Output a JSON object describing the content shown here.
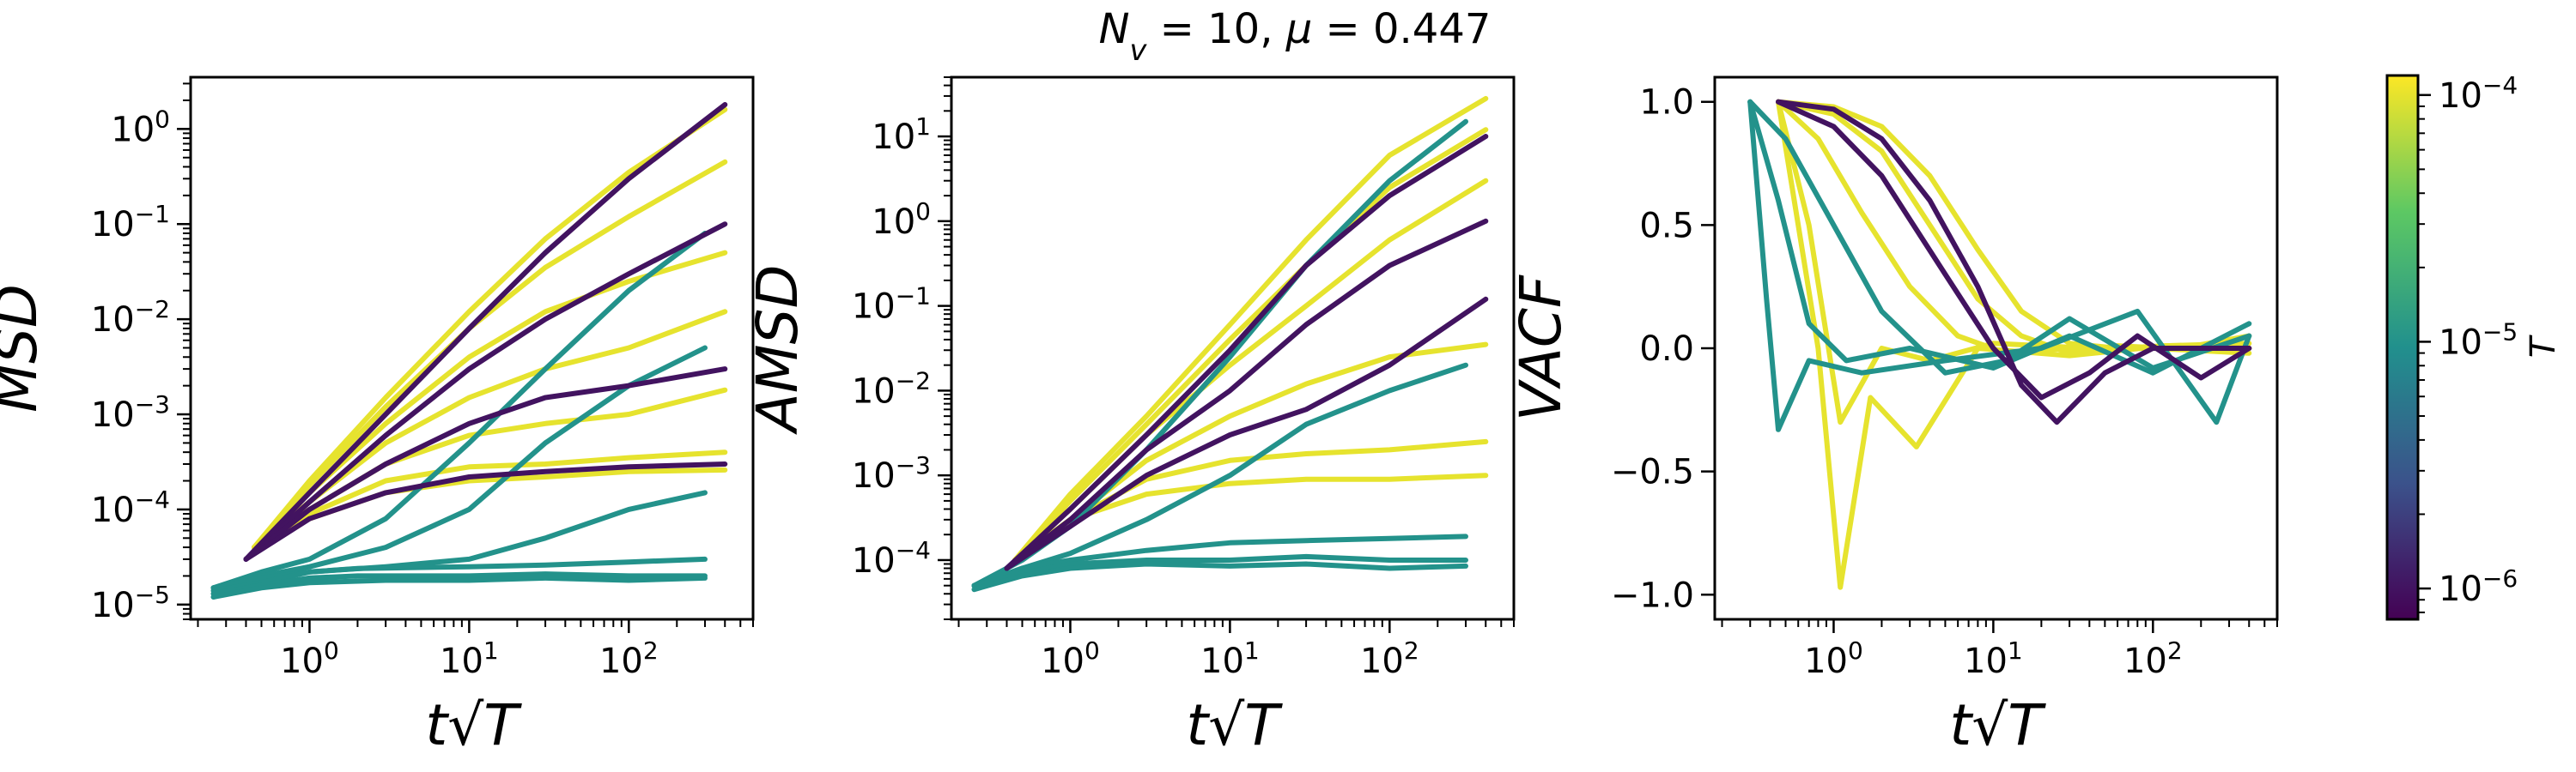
{
  "suptitle": "N_v = 10, μ = 0.447",
  "colormap": [
    "#440154",
    "#3b528b",
    "#21908d",
    "#5dc863",
    "#fde725"
  ],
  "chart_data": [
    {
      "type": "line",
      "ylabel": "MSD",
      "xlabel": "t√T",
      "xscale": "log",
      "yscale": "log",
      "xlim": [
        0.18,
        600
      ],
      "ylim": [
        7e-06,
        3.5
      ],
      "xticks": [
        1,
        10,
        100
      ],
      "xtick_labels": [
        "10^0",
        "10^1",
        "10^2"
      ],
      "yticks": [
        1e-05,
        0.0001,
        0.001,
        0.01,
        0.1,
        1
      ],
      "ytick_labels": [
        "10^-5",
        "10^-4",
        "10^-3",
        "10^-2",
        "10^-1",
        "10^0"
      ],
      "grid": false,
      "series": [
        {
          "T": 0.0001,
          "x": [
            0.45,
            1,
            3,
            10,
            30,
            100,
            400
          ],
          "y": [
            4e-05,
            0.0002,
            0.0015,
            0.012,
            0.07,
            0.35,
            1.6
          ]
        },
        {
          "T": 0.0001,
          "x": [
            0.45,
            1,
            3,
            10,
            30,
            100,
            400
          ],
          "y": [
            4e-05,
            0.00018,
            0.0012,
            0.008,
            0.035,
            0.12,
            0.45
          ]
        },
        {
          "T": 0.0001,
          "x": [
            0.45,
            1,
            3,
            10,
            30,
            100,
            400
          ],
          "y": [
            4e-05,
            0.00015,
            0.0008,
            0.004,
            0.012,
            0.025,
            0.05
          ]
        },
        {
          "T": 0.0001,
          "x": [
            0.45,
            1,
            3,
            10,
            30,
            100,
            400
          ],
          "y": [
            4e-05,
            0.00012,
            0.0005,
            0.0015,
            0.003,
            0.005,
            0.012
          ]
        },
        {
          "T": 0.0001,
          "x": [
            0.45,
            1,
            3,
            10,
            30,
            100,
            400
          ],
          "y": [
            4e-05,
            0.0001,
            0.0003,
            0.0006,
            0.0008,
            0.001,
            0.0018
          ]
        },
        {
          "T": 0.0001,
          "x": [
            0.45,
            1,
            3,
            10,
            30,
            100,
            400
          ],
          "y": [
            4e-05,
            9e-05,
            0.0002,
            0.00028,
            0.0003,
            0.00035,
            0.0004
          ]
        },
        {
          "T": 0.0001,
          "x": [
            0.45,
            1,
            3,
            10,
            30,
            100,
            400
          ],
          "y": [
            4e-05,
            8e-05,
            0.00015,
            0.0002,
            0.00022,
            0.00025,
            0.00026
          ]
        },
        {
          "T": 1e-05,
          "x": [
            0.25,
            0.5,
            1,
            3,
            10,
            30,
            100,
            300
          ],
          "y": [
            1.5e-05,
            2.2e-05,
            3e-05,
            8e-05,
            0.0005,
            0.003,
            0.02,
            0.08
          ]
        },
        {
          "T": 1e-05,
          "x": [
            0.25,
            0.5,
            1,
            3,
            10,
            30,
            100,
            300
          ],
          "y": [
            1.5e-05,
            2e-05,
            2.5e-05,
            4e-05,
            0.0001,
            0.0005,
            0.002,
            0.005
          ]
        },
        {
          "T": 1e-05,
          "x": [
            0.25,
            0.5,
            1,
            3,
            10,
            30,
            100,
            300
          ],
          "y": [
            1.5e-05,
            1.9e-05,
            2.2e-05,
            2.5e-05,
            3e-05,
            5e-05,
            0.0001,
            0.00015
          ]
        },
        {
          "T": 1e-05,
          "x": [
            0.25,
            0.5,
            1,
            2,
            10,
            30,
            100,
            300
          ],
          "y": [
            1.4e-05,
            1.7e-05,
            2.2e-05,
            2.4e-05,
            2.5e-05,
            2.6e-05,
            2.8e-05,
            3e-05
          ]
        },
        {
          "T": 1e-05,
          "x": [
            0.25,
            0.5,
            1,
            2,
            10,
            30,
            100,
            300
          ],
          "y": [
            1.3e-05,
            1.6e-05,
            1.9e-05,
            2e-05,
            2e-05,
            2.1e-05,
            2e-05,
            2e-05
          ]
        },
        {
          "T": 1e-05,
          "x": [
            0.25,
            0.5,
            1,
            3,
            10,
            30,
            100,
            300
          ],
          "y": [
            1.2e-05,
            1.5e-05,
            1.7e-05,
            1.8e-05,
            1.8e-05,
            1.9e-05,
            1.8e-05,
            1.9e-05
          ]
        },
        {
          "T": 1e-06,
          "x": [
            0.4,
            1,
            3,
            10,
            30,
            100,
            400
          ],
          "y": [
            3e-05,
            0.00015,
            0.001,
            0.008,
            0.05,
            0.3,
            1.8
          ]
        },
        {
          "T": 1e-06,
          "x": [
            0.4,
            1,
            3,
            10,
            30,
            100,
            400
          ],
          "y": [
            3e-05,
            0.00012,
            0.0006,
            0.003,
            0.01,
            0.03,
            0.1
          ]
        },
        {
          "T": 1e-06,
          "x": [
            0.4,
            1,
            3,
            10,
            30,
            100,
            400
          ],
          "y": [
            3e-05,
            0.0001,
            0.0003,
            0.0008,
            0.0015,
            0.002,
            0.003
          ]
        },
        {
          "T": 1e-06,
          "x": [
            0.4,
            1,
            3,
            10,
            30,
            100,
            400
          ],
          "y": [
            3e-05,
            8e-05,
            0.00015,
            0.00022,
            0.00025,
            0.00028,
            0.0003
          ]
        }
      ]
    },
    {
      "type": "line",
      "ylabel": "AMSD",
      "xlabel": "t√T",
      "xscale": "log",
      "yscale": "log",
      "xlim": [
        0.18,
        600
      ],
      "ylim": [
        2e-05,
        50
      ],
      "xticks": [
        1,
        10,
        100
      ],
      "xtick_labels": [
        "10^0",
        "10^1",
        "10^2"
      ],
      "yticks": [
        0.0001,
        0.001,
        0.01,
        0.1,
        1,
        10
      ],
      "ytick_labels": [
        "10^-4",
        "10^-3",
        "10^-2",
        "10^-1",
        "10^0",
        "10^1"
      ],
      "grid": false,
      "series": [
        {
          "T": 0.0001,
          "x": [
            0.45,
            1,
            3,
            10,
            30,
            100,
            400
          ],
          "y": [
            0.0001,
            0.0006,
            0.005,
            0.06,
            0.6,
            6,
            28
          ]
        },
        {
          "T": 0.0001,
          "x": [
            0.45,
            1,
            3,
            10,
            30,
            100,
            400
          ],
          "y": [
            0.0001,
            0.0005,
            0.004,
            0.04,
            0.3,
            2.5,
            12
          ]
        },
        {
          "T": 0.0001,
          "x": [
            0.45,
            1,
            3,
            10,
            30,
            100,
            400
          ],
          "y": [
            0.0001,
            0.0004,
            0.003,
            0.02,
            0.1,
            0.6,
            3
          ]
        },
        {
          "T": 0.0001,
          "x": [
            0.45,
            1,
            3,
            10,
            30,
            100,
            400
          ],
          "y": [
            0.0001,
            0.0003,
            0.0015,
            0.005,
            0.012,
            0.025,
            0.035
          ]
        },
        {
          "T": 0.0001,
          "x": [
            0.45,
            1,
            3,
            10,
            30,
            100,
            400
          ],
          "y": [
            0.0001,
            0.0003,
            0.0009,
            0.0015,
            0.0018,
            0.002,
            0.0025
          ]
        },
        {
          "T": 0.0001,
          "x": [
            0.45,
            1,
            3,
            10,
            30,
            100,
            400
          ],
          "y": [
            0.0001,
            0.0003,
            0.0006,
            0.0008,
            0.0009,
            0.0009,
            0.001
          ]
        },
        {
          "T": 1e-05,
          "x": [
            0.25,
            0.5,
            1,
            3,
            10,
            30,
            100,
            300
          ],
          "y": [
            5e-05,
            0.0001,
            0.00025,
            0.002,
            0.025,
            0.3,
            3,
            15
          ]
        },
        {
          "T": 1e-05,
          "x": [
            0.25,
            0.5,
            1,
            3,
            10,
            30,
            100,
            300
          ],
          "y": [
            5e-05,
            8e-05,
            0.00012,
            0.0003,
            0.001,
            0.004,
            0.01,
            0.02
          ]
        },
        {
          "T": 1e-05,
          "x": [
            0.25,
            0.5,
            1,
            3,
            10,
            30,
            100,
            300
          ],
          "y": [
            5e-05,
            8e-05,
            0.0001,
            0.00013,
            0.00016,
            0.00017,
            0.00018,
            0.00019
          ]
        },
        {
          "T": 1e-05,
          "x": [
            0.25,
            0.5,
            1,
            3,
            10,
            30,
            100,
            300
          ],
          "y": [
            5e-05,
            7e-05,
            9e-05,
            0.0001,
            0.0001,
            0.00011,
            0.0001,
            0.0001
          ]
        },
        {
          "T": 1e-05,
          "x": [
            0.25,
            0.5,
            1,
            3,
            10,
            30,
            100,
            300
          ],
          "y": [
            4.5e-05,
            6.5e-05,
            8e-05,
            9e-05,
            8.5e-05,
            9e-05,
            8e-05,
            8.5e-05
          ]
        },
        {
          "T": 1e-06,
          "x": [
            0.4,
            1,
            3,
            10,
            30,
            100,
            400
          ],
          "y": [
            8e-05,
            0.0004,
            0.003,
            0.03,
            0.3,
            2,
            10
          ]
        },
        {
          "T": 1e-06,
          "x": [
            0.4,
            1,
            3,
            10,
            30,
            100,
            400
          ],
          "y": [
            8e-05,
            0.0003,
            0.002,
            0.01,
            0.06,
            0.3,
            1
          ]
        },
        {
          "T": 1e-06,
          "x": [
            0.4,
            1,
            3,
            10,
            30,
            100,
            400
          ],
          "y": [
            8e-05,
            0.00025,
            0.001,
            0.003,
            0.006,
            0.02,
            0.12
          ]
        }
      ]
    },
    {
      "type": "line",
      "ylabel": "VACF",
      "xlabel": "t√T",
      "xscale": "log",
      "yscale": "linear",
      "xlim": [
        0.18,
        600
      ],
      "ylim": [
        -1.1,
        1.1
      ],
      "xticks": [
        1,
        10,
        100
      ],
      "xtick_labels": [
        "10^0",
        "10^1",
        "10^2"
      ],
      "yticks": [
        -1.0,
        -0.5,
        0.0,
        0.5,
        1.0
      ],
      "ytick_labels": [
        "−1.0",
        "−0.5",
        "0.0",
        "0.5",
        "1.0"
      ],
      "grid": false,
      "series": [
        {
          "T": 0.0001,
          "x": [
            0.45,
            1,
            2,
            4,
            8,
            15,
            30,
            60,
            120,
            400
          ],
          "y": [
            1.0,
            0.98,
            0.9,
            0.7,
            0.4,
            0.15,
            0.02,
            0.0,
            0.01,
            0.02
          ]
        },
        {
          "T": 0.0001,
          "x": [
            0.45,
            1,
            2,
            4,
            8,
            15,
            30,
            60,
            120,
            400
          ],
          "y": [
            1.0,
            0.95,
            0.8,
            0.5,
            0.2,
            0.05,
            -0.02,
            0.01,
            0.0,
            0.0
          ]
        },
        {
          "T": 0.0001,
          "x": [
            0.45,
            0.8,
            1.5,
            3,
            6,
            12,
            30,
            100,
            400
          ],
          "y": [
            1.0,
            0.85,
            0.55,
            0.25,
            0.05,
            -0.02,
            0.0,
            0.0,
            -0.02
          ]
        },
        {
          "T": 0.0001,
          "x": [
            0.45,
            0.7,
            1.1,
            2,
            4,
            10,
            40,
            150,
            400
          ],
          "y": [
            1.0,
            0.5,
            -0.3,
            0.0,
            -0.05,
            0.02,
            0.0,
            0.0,
            0.05
          ]
        },
        {
          "T": 0.0001,
          "x": [
            0.45,
            0.8,
            1.1,
            1.7,
            3.3,
            8,
            30,
            120,
            400
          ],
          "y": [
            1.0,
            0.0,
            -0.97,
            -0.2,
            -0.4,
            0.0,
            -0.03,
            0.01,
            0.0
          ]
        },
        {
          "T": 1e-05,
          "x": [
            0.3,
            0.45,
            0.7,
            1.2,
            3,
            10,
            30,
            100,
            400
          ],
          "y": [
            1.0,
            0.6,
            0.1,
            -0.05,
            0.0,
            -0.08,
            0.05,
            -0.1,
            0.1
          ]
        },
        {
          "T": 1e-05,
          "x": [
            0.3,
            0.38,
            0.45,
            0.7,
            1.5,
            5,
            20,
            80,
            250,
            400
          ],
          "y": [
            1.0,
            0.2,
            -0.33,
            -0.05,
            -0.1,
            -0.05,
            0.0,
            0.15,
            -0.3,
            0.05
          ]
        },
        {
          "T": 1e-05,
          "x": [
            0.3,
            0.5,
            1,
            2,
            5,
            12,
            30,
            100,
            400
          ],
          "y": [
            1.0,
            0.85,
            0.5,
            0.15,
            -0.1,
            -0.05,
            0.12,
            -0.08,
            0.05
          ]
        },
        {
          "T": 1e-06,
          "x": [
            0.45,
            1,
            2,
            4,
            8,
            15,
            25,
            50,
            100,
            400
          ],
          "y": [
            1.0,
            0.97,
            0.85,
            0.6,
            0.25,
            -0.15,
            -0.3,
            -0.1,
            0.0,
            0.0
          ]
        },
        {
          "T": 1e-06,
          "x": [
            0.45,
            1,
            2,
            5,
            10,
            20,
            40,
            80,
            200,
            400
          ],
          "y": [
            1.0,
            0.9,
            0.7,
            0.3,
            0.0,
            -0.2,
            -0.1,
            0.05,
            -0.12,
            0.0
          ]
        }
      ]
    }
  ],
  "colorbar": {
    "label": "T",
    "scale": "log",
    "range": [
      7.5e-07,
      0.00012
    ],
    "ticks": [
      1e-06,
      1e-05,
      0.0001
    ],
    "tick_labels": [
      "10^-6",
      "10^-5",
      "10^-4"
    ]
  }
}
